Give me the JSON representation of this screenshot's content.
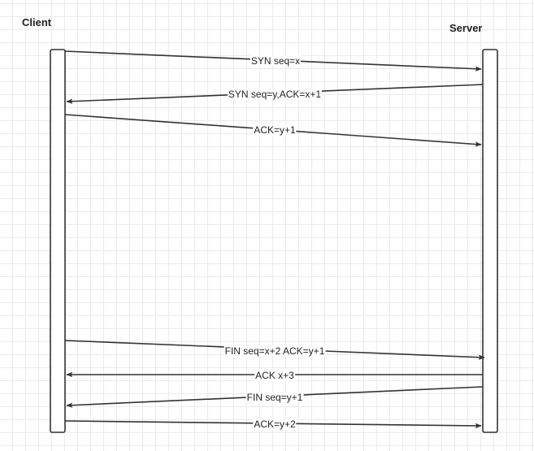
{
  "participants": {
    "client": "Client",
    "server": "Server"
  },
  "messages": [
    {
      "label": "SYN seq=x",
      "from": "client",
      "to": "server"
    },
    {
      "label": "SYN seq=y,ACK=x+1",
      "from": "server",
      "to": "client"
    },
    {
      "label": "ACK=y+1",
      "from": "client",
      "to": "server"
    },
    {
      "label": "FIN seq=x+2 ACK=y+1",
      "from": "client",
      "to": "server"
    },
    {
      "label": "ACK x+3",
      "from": "server",
      "to": "client"
    },
    {
      "label": "FIN seq=y+1",
      "from": "server",
      "to": "client"
    },
    {
      "label": "ACK=y+2",
      "from": "client",
      "to": "server"
    }
  ],
  "colors": {
    "line": "#333333",
    "lifeline_fill": "#ffffff"
  }
}
